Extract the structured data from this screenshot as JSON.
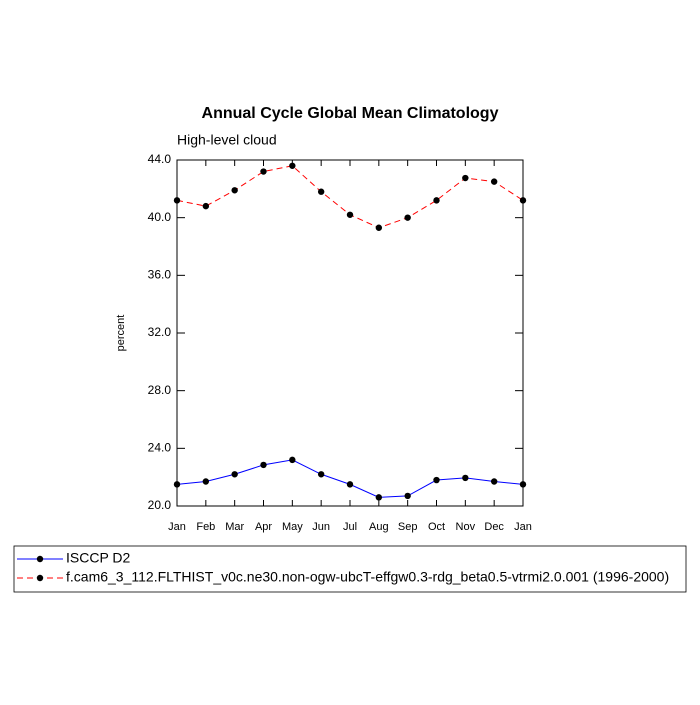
{
  "chart_data": {
    "type": "line",
    "title": "Annual Cycle Global Mean Climatology",
    "subtitle": "High-level cloud",
    "y_label": "percent",
    "categories": [
      "Jan",
      "Feb",
      "Mar",
      "Apr",
      "May",
      "Jun",
      "Jul",
      "Aug",
      "Sep",
      "Oct",
      "Nov",
      "Dec",
      "Jan"
    ],
    "series": [
      {
        "name": "ISCCP D2",
        "color": "#0000ff",
        "dash": "solid",
        "values": [
          21.5,
          21.7,
          22.2,
          22.85,
          23.2,
          22.2,
          21.5,
          20.6,
          20.7,
          21.8,
          21.95,
          21.7,
          21.5
        ]
      },
      {
        "name": "f.cam6_3_112.FLTHIST_v0c.ne30.non-ogw-ubcT-effgw0.3-rdg_beta0.5-vtrmi2.0.001 (1996-2000)",
        "color": "#ff0000",
        "dash": "dashed",
        "values": [
          41.2,
          40.8,
          41.9,
          43.2,
          43.6,
          41.8,
          40.2,
          39.3,
          40.0,
          41.2,
          42.75,
          42.5,
          41.2
        ]
      }
    ],
    "ylim": [
      20,
      44
    ],
    "yticks": [
      {
        "value": 20,
        "label": "20.0"
      },
      {
        "value": 24,
        "label": "24.0"
      },
      {
        "value": 28,
        "label": "28.0"
      },
      {
        "value": 32,
        "label": "32.0"
      },
      {
        "value": 36,
        "label": "36.0"
      },
      {
        "value": 40,
        "label": "40.0"
      },
      {
        "value": 44,
        "label": "44.0"
      }
    ],
    "grid": false,
    "legend": "bottom"
  }
}
